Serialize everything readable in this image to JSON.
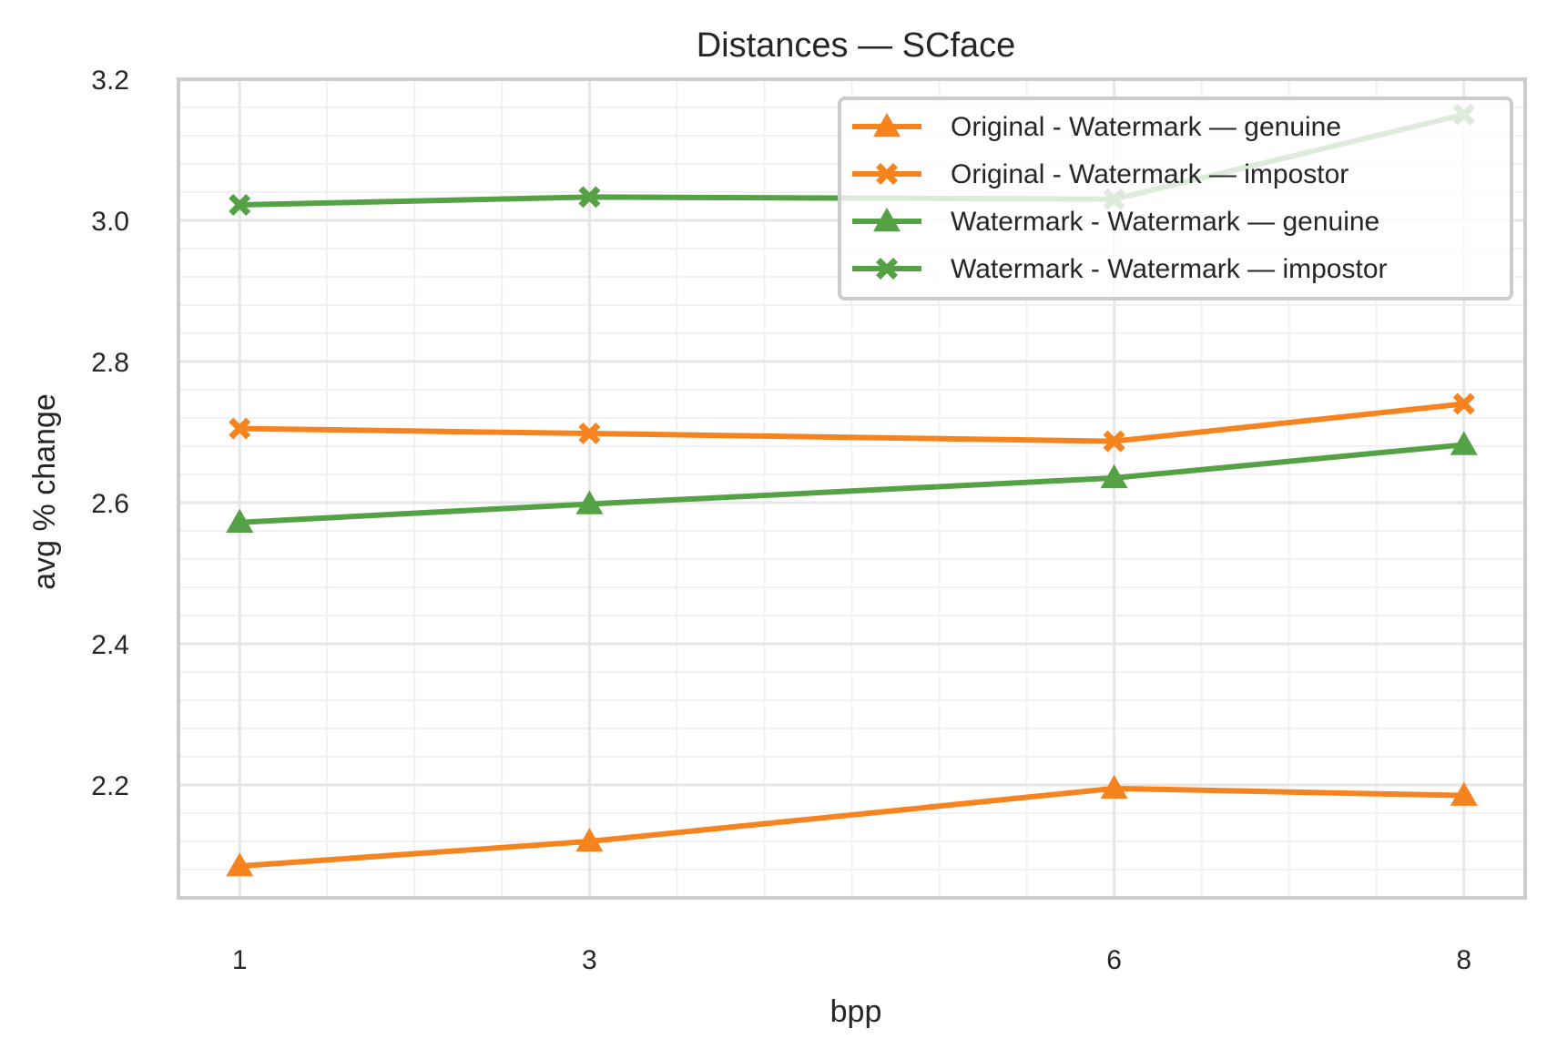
{
  "chart_data": {
    "type": "line",
    "title": "Distances — SCface",
    "xlabel": "bpp",
    "ylabel": "avg % change",
    "x": [
      1,
      3,
      6,
      8
    ],
    "x_ticks": [
      "1",
      "3",
      "6",
      "8"
    ],
    "y_ticks": [
      "2.2",
      "2.4",
      "2.6",
      "2.8",
      "3.0",
      "3.2"
    ],
    "xlim": [
      0.65,
      8.35
    ],
    "ylim": [
      2.04,
      3.2
    ],
    "grid": true,
    "legend_position": "top-right",
    "series": [
      {
        "name": "Original - Watermark — genuine",
        "color": "#f5841f",
        "marker": "triangle",
        "values": [
          2.085,
          2.12,
          2.195,
          2.185
        ]
      },
      {
        "name": "Original - Watermark — impostor",
        "color": "#f5841f",
        "marker": "x",
        "values": [
          2.705,
          2.698,
          2.687,
          2.74
        ]
      },
      {
        "name": "Watermark - Watermark — genuine",
        "color": "#55a246",
        "marker": "triangle",
        "values": [
          2.572,
          2.598,
          2.635,
          2.682
        ]
      },
      {
        "name": "Watermark - Watermark — impostor",
        "color": "#55a246",
        "marker": "x",
        "values": [
          3.022,
          3.033,
          3.03,
          3.15
        ]
      }
    ]
  }
}
